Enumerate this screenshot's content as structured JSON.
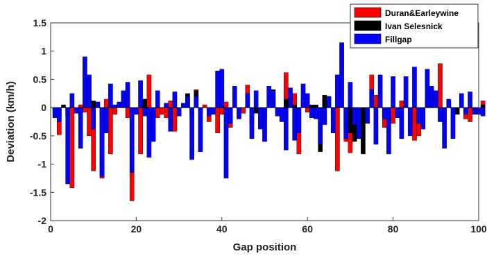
{
  "chart_data": {
    "type": "bar",
    "xlabel": "Gap position",
    "ylabel": "Deviation (km/h)",
    "xlim": [
      0,
      100
    ],
    "ylim": [
      -2,
      1.5
    ],
    "xticks": [
      0,
      20,
      40,
      60,
      80,
      100
    ],
    "yticks": [
      -2,
      -1.5,
      -1,
      -0.5,
      0,
      0.5,
      1,
      1.5
    ],
    "legend_position": "top-right",
    "grid": false,
    "series": [
      {
        "name": "Duran&Earleywine",
        "color": "#ff0000",
        "values": [
          -0.15,
          -0.48,
          0.0,
          -0.15,
          -1.42,
          0.0,
          0.05,
          -0.08,
          -0.5,
          -1.12,
          0.1,
          -1.25,
          0.15,
          -0.82,
          -0.12,
          0.0,
          0.0,
          -0.18,
          -1.65,
          0.0,
          -0.82,
          0.0,
          0.58,
          0.0,
          -0.18,
          -0.12,
          -0.18,
          0.12,
          -0.42,
          0.0,
          0.0,
          0.0,
          -0.12,
          0.32,
          -0.08,
          0.05,
          -0.25,
          0.0,
          -0.45,
          -0.12,
          0.1,
          -0.35,
          0.0,
          0.0,
          -0.1,
          0.4,
          -0.28,
          0.0,
          -0.25,
          -0.18,
          0.0,
          0.22,
          0.0,
          -0.15,
          0.62,
          0.0,
          0.25,
          -0.82,
          0.15,
          -0.08,
          -0.18,
          0.0,
          -0.12,
          0.0,
          0.0,
          -0.1,
          -1.12,
          0.0,
          -0.6,
          -0.8,
          -0.15,
          0.0,
          0.0,
          0.0,
          0.58,
          0.22,
          0.0,
          -0.35,
          0.0,
          -0.28,
          0.0,
          0.12,
          0.0,
          -0.42,
          -0.58,
          -0.5,
          0.0,
          0.0,
          0.0,
          0.12,
          0.78,
          -0.28,
          0.12,
          0.0,
          0.0,
          0.0,
          -0.2,
          -0.25,
          -0.1,
          0.0,
          0.12
        ]
      },
      {
        "name": "Ivan Selesnick",
        "color": "#000000",
        "values": [
          -0.05,
          0.0,
          0.05,
          0.0,
          0.0,
          0.0,
          -0.1,
          0.0,
          0.0,
          0.12,
          0.0,
          -0.18,
          0.0,
          0.0,
          0.0,
          0.0,
          0.0,
          0.0,
          0.0,
          0.0,
          0.0,
          0.15,
          0.0,
          0.0,
          0.0,
          0.0,
          0.0,
          0.0,
          0.0,
          0.0,
          0.0,
          0.25,
          0.0,
          0.3,
          -0.05,
          0.0,
          0.0,
          0.0,
          0.0,
          0.0,
          0.0,
          0.0,
          0.0,
          0.0,
          0.0,
          0.0,
          0.0,
          -0.1,
          0.0,
          0.0,
          0.0,
          0.32,
          0.0,
          0.0,
          0.15,
          0.0,
          0.05,
          0.0,
          0.0,
          0.0,
          0.05,
          0.05,
          -0.78,
          0.22,
          0.0,
          0.0,
          0.0,
          0.0,
          -0.35,
          -0.45,
          -0.6,
          0.0,
          -0.82,
          0.0,
          0.0,
          0.0,
          0.0,
          -0.08,
          0.0,
          0.0,
          0.0,
          0.0,
          0.0,
          0.0,
          0.0,
          0.0,
          0.0,
          0.0,
          0.0,
          0.0,
          0.0,
          0.0,
          0.05,
          0.0,
          -0.12,
          0.0,
          0.0,
          0.0,
          0.0,
          0.0,
          0.05
        ]
      },
      {
        "name": "Fillgap",
        "color": "#0000ff",
        "values": [
          -0.18,
          -0.25,
          0.0,
          -1.35,
          0.25,
          -0.1,
          -0.72,
          0.9,
          0.58,
          -0.38,
          0.1,
          -1.22,
          -0.45,
          0.42,
          0.05,
          0.1,
          0.3,
          0.45,
          -1.15,
          -0.12,
          0.48,
          -0.15,
          -0.88,
          -0.6,
          0.3,
          0.0,
          0.08,
          -0.42,
          0.28,
          -0.15,
          0.08,
          0.2,
          -0.92,
          0.2,
          -0.78,
          0.0,
          -0.15,
          -0.12,
          0.65,
          0.68,
          -1.25,
          -0.28,
          0.38,
          -0.2,
          0.0,
          0.25,
          -0.55,
          0.3,
          -0.38,
          -0.6,
          0.38,
          0.3,
          -0.15,
          -0.25,
          -0.75,
          0.35,
          -0.58,
          -0.45,
          0.42,
          0.25,
          -0.18,
          -0.2,
          -0.65,
          -0.3,
          0.2,
          -0.45,
          0.58,
          1.15,
          -0.55,
          0.45,
          -0.3,
          -0.55,
          0.0,
          -0.28,
          0.32,
          -0.65,
          0.58,
          -0.2,
          -0.82,
          0.55,
          -0.18,
          -0.55,
          0.55,
          -0.5,
          0.72,
          -0.28,
          -0.38,
          0.68,
          0.38,
          0.3,
          -0.25,
          -0.72,
          0.15,
          -0.55,
          0.0,
          0.25,
          -0.12,
          0.28,
          -0.12,
          -0.12,
          -0.15
        ]
      }
    ]
  }
}
